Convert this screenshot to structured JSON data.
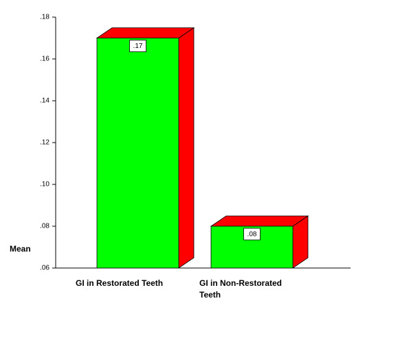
{
  "chart_data": {
    "type": "bar3d",
    "y_label": "Mean",
    "categories": [
      "GI in Restorated Teeth",
      "GI in Non-Restorated Teeth"
    ],
    "values": [
      0.17,
      0.08
    ],
    "value_labels": [
      ".17",
      ".08"
    ],
    "color": "#00ff00",
    "side_color": "#ff0000",
    "ylim": [
      0.06,
      0.18
    ],
    "yticks": [
      {
        "value": 0.06,
        "label": ".06"
      },
      {
        "value": 0.08,
        "label": ".08"
      },
      {
        "value": 0.1,
        "label": ".10"
      },
      {
        "value": 0.12,
        "label": ".12"
      },
      {
        "value": 0.14,
        "label": ".14"
      },
      {
        "value": 0.16,
        "label": ".16"
      },
      {
        "value": 0.18,
        "label": ".18"
      }
    ]
  }
}
